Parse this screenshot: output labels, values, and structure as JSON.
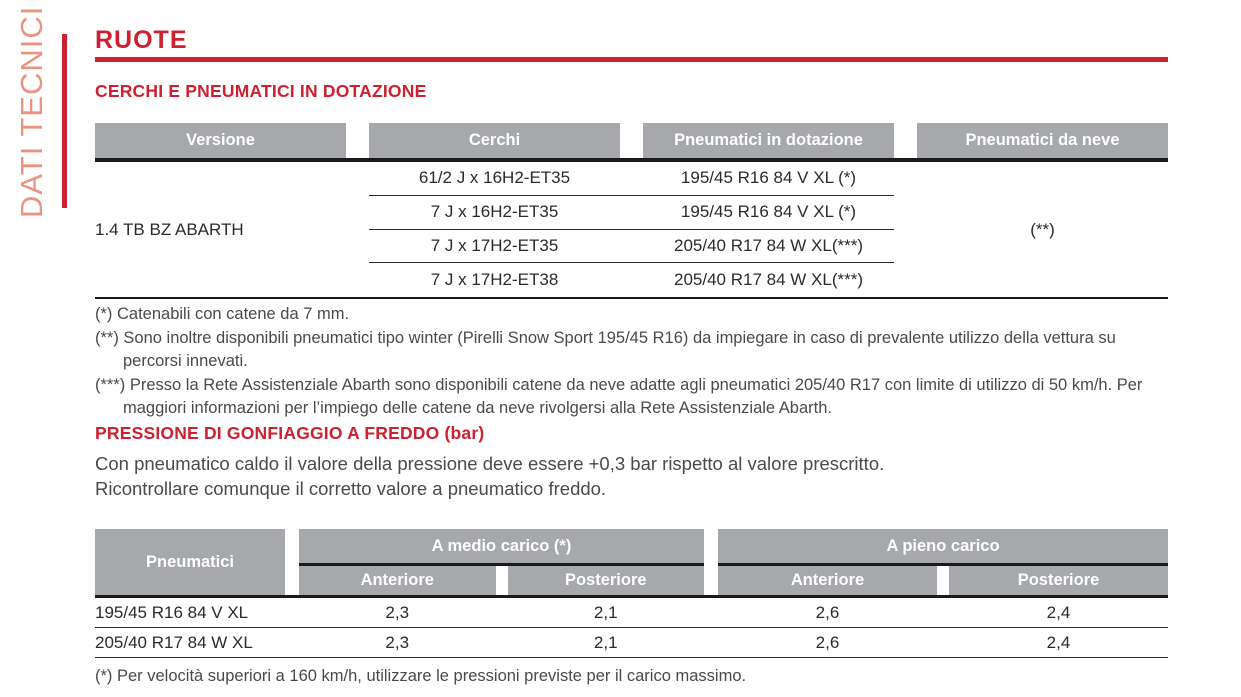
{
  "sidebar": {
    "label": "DATI TECNICI"
  },
  "page": {
    "title": "RUOTE"
  },
  "colors": {
    "accent_red": "#ce2030",
    "sidebar_salmon": "#e9947f",
    "header_gray": "#a6a8ab"
  },
  "section1": {
    "heading": "CERCHI E PNEUMATICI IN DOTAZIONE",
    "table": {
      "headers": [
        "Versione",
        "Cerchi",
        "Pneumatici in dotazione",
        "Pneumatici da neve"
      ],
      "version": "1.4 TB BZ ABARTH",
      "rows": [
        {
          "cerchi": "61/2 J x 16H2-ET35",
          "pneumatici": "195/45 R16 84 V XL (*)"
        },
        {
          "cerchi": "7 J x 16H2-ET35",
          "pneumatici": "195/45 R16 84 V XL (*)"
        },
        {
          "cerchi": "7 J x 17H2-ET35",
          "pneumatici": "205/40 R17 84 W XL(***)"
        },
        {
          "cerchi": "7 J x 17H2-ET38",
          "pneumatici": "205/40 R17 84 W XL(***)"
        }
      ],
      "neve": "(**)"
    },
    "footnotes": [
      "(*) Catenabili con catene da 7 mm.",
      "(**) Sono inoltre disponibili pneumatici tipo winter (Pirelli Snow Sport 195/45 R16) da impiegare in caso di prevalente utilizzo della vettura su percorsi innevati.",
      "(***) Presso la Rete Assistenziale Abarth sono disponibili catene da neve adatte agli pneumatici 205/40 R17 con limite di utilizzo di 50 km/h. Per maggiori informazioni per l’impiego delle catene da neve rivolgersi alla Rete Assistenziale Abarth."
    ]
  },
  "section2": {
    "heading": "PRESSIONE DI GONFIAGGIO A FREDDO (bar)",
    "intro_line1": "Con pneumatico caldo il valore della pressione deve essere +0,3 bar rispetto al valore prescritto.",
    "intro_line2": "Ricontrollare comunque il corretto valore a pneumatico freddo.",
    "table": {
      "col1_header": "Pneumatici",
      "groups": [
        {
          "label": "A medio carico (*)",
          "sub1": "Anteriore",
          "sub2": "Posteriore"
        },
        {
          "label": "A pieno carico",
          "sub1": "Anteriore",
          "sub2": "Posteriore"
        }
      ],
      "rows": [
        {
          "tyre": "195/45 R16 84 V XL",
          "v1": "2,3",
          "v2": "2,1",
          "v3": "2,6",
          "v4": "2,4"
        },
        {
          "tyre": "205/40 R17 84 W XL",
          "v1": "2,3",
          "v2": "2,1",
          "v3": "2,6",
          "v4": "2,4"
        }
      ]
    },
    "footnote": "(*) Per velocità superiori a 160 km/h, utilizzare le pressioni previste per il carico massimo."
  }
}
